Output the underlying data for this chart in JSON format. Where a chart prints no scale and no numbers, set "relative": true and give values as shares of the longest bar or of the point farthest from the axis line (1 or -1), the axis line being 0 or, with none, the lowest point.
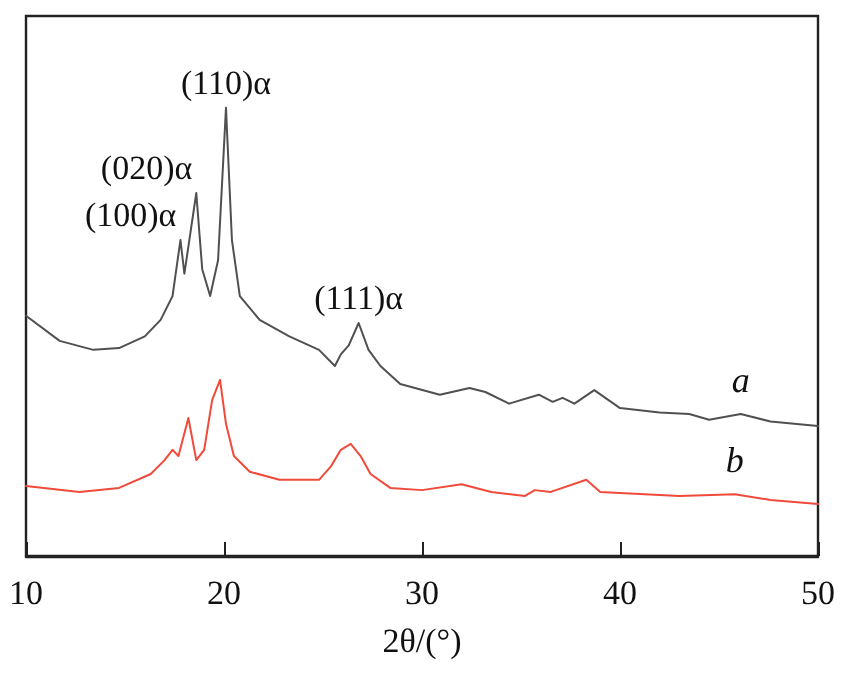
{
  "chart_data": {
    "type": "line",
    "relative": true,
    "xlabel": "2θ/(°)",
    "xlim": [
      10,
      50
    ],
    "xticks": [
      10,
      20,
      30,
      40,
      50
    ],
    "grid": false,
    "legend": false,
    "marker": "none",
    "line_style": "solid",
    "annotations": [
      {
        "text": "(100)α",
        "x": 17.8,
        "y": 0.705
      },
      {
        "text": "(020)α",
        "x": 18.6,
        "y": 0.81
      },
      {
        "text": "(110)α",
        "x": 20.1,
        "y": 1.0
      },
      {
        "text": "(111)α",
        "x": 26.8,
        "y": 0.52
      }
    ],
    "series": [
      {
        "name": "a",
        "color": "#505050",
        "x": [
          10,
          11.7,
          13.4,
          14.7,
          16,
          16.8,
          17.4,
          17.8,
          18.0,
          18.6,
          18.9,
          19.3,
          19.7,
          20.1,
          20.4,
          20.8,
          21.8,
          23.3,
          24.8,
          25.6,
          25.9,
          26.3,
          26.8,
          27.3,
          27.9,
          28.9,
          30.9,
          32.4,
          33.2,
          34.4,
          35.9,
          36.6,
          37.1,
          37.7,
          38.7,
          40.0,
          42.0,
          43.5,
          44.5,
          46.1,
          47.6,
          50
        ],
        "values": [
          0.536,
          0.48,
          0.46,
          0.464,
          0.49,
          0.527,
          0.58,
          0.705,
          0.63,
          0.81,
          0.64,
          0.58,
          0.66,
          1.0,
          0.705,
          0.58,
          0.527,
          0.49,
          0.46,
          0.424,
          0.45,
          0.47,
          0.52,
          0.46,
          0.424,
          0.384,
          0.36,
          0.375,
          0.366,
          0.34,
          0.36,
          0.344,
          0.353,
          0.34,
          0.37,
          0.33,
          0.32,
          0.317,
          0.304,
          0.317,
          0.3,
          0.29
        ]
      },
      {
        "name": "b",
        "color": "#f04a3a",
        "x": [
          10,
          12.7,
          14.7,
          16.3,
          17.0,
          17.4,
          17.7,
          18.2,
          18.6,
          19.0,
          19.4,
          19.8,
          20.1,
          20.5,
          21.3,
          22.8,
          24.8,
          25.4,
          25.9,
          26.4,
          26.9,
          27.4,
          28.4,
          30.0,
          32.0,
          33.5,
          35.2,
          35.7,
          36.5,
          38.3,
          39.0,
          43.0,
          45.8,
          47.6,
          50
        ],
        "values": [
          0.156,
          0.143,
          0.152,
          0.183,
          0.214,
          0.237,
          0.223,
          0.308,
          0.214,
          0.237,
          0.348,
          0.393,
          0.295,
          0.223,
          0.188,
          0.17,
          0.17,
          0.2,
          0.237,
          0.25,
          0.223,
          0.183,
          0.152,
          0.147,
          0.16,
          0.143,
          0.134,
          0.147,
          0.143,
          0.17,
          0.143,
          0.134,
          0.138,
          0.125,
          0.116
        ]
      }
    ]
  }
}
